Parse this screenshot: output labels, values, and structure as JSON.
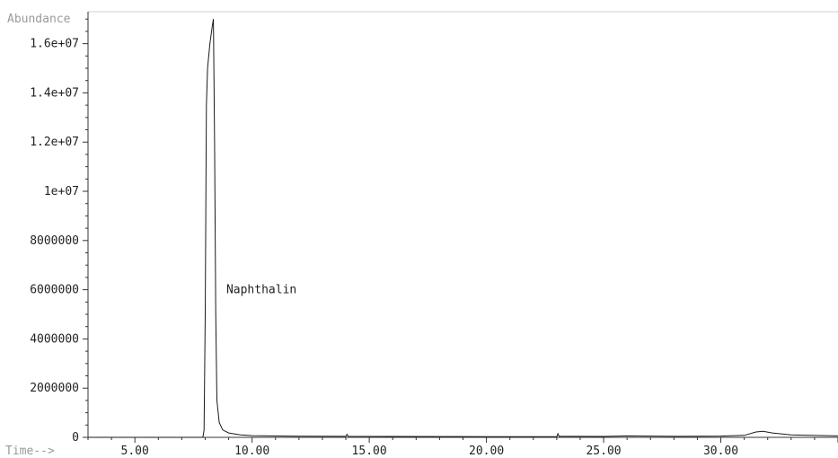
{
  "chart_data": {
    "type": "line",
    "ylabel": "Abundance",
    "xlabel": "Time-->",
    "xlim": [
      3.0,
      35.0
    ],
    "ylim": [
      0,
      17300000
    ],
    "x_ticks": [
      5.0,
      10.0,
      15.0,
      20.0,
      25.0,
      30.0
    ],
    "x_tick_labels": [
      "5.00",
      "10.00",
      "15.00",
      "20.00",
      "25.00",
      "30.00"
    ],
    "y_ticks": [
      0,
      2000000,
      4000000,
      6000000,
      8000000,
      10000000,
      12000000,
      14000000,
      16000000
    ],
    "y_tick_labels": [
      "0",
      "2000000",
      "4000000",
      "6000000",
      "8000000",
      "1e+07",
      "1.2e+07",
      "1.4e+07",
      "1.6e+07"
    ],
    "grid": false,
    "series": [
      {
        "x": [
          3.0,
          7.9,
          7.95,
          8.0,
          8.05,
          8.1,
          8.2,
          8.3,
          8.35,
          8.4,
          8.45,
          8.5,
          8.6,
          8.75,
          9.0,
          9.5,
          10.0,
          12.0,
          14.0,
          14.05,
          14.1,
          16.0,
          18.0,
          20.0,
          22.0,
          23.0,
          23.05,
          23.1,
          25.0,
          26.0,
          28.0,
          30.0,
          31.0,
          31.5,
          31.8,
          32.2,
          33.0,
          35.0
        ],
        "y": [
          0,
          0,
          300000,
          5000000,
          13500000,
          15000000,
          16000000,
          16700000,
          17000000,
          12000000,
          5000000,
          1500000,
          600000,
          300000,
          180000,
          100000,
          70000,
          45000,
          40000,
          120000,
          40000,
          35000,
          32000,
          30000,
          30000,
          30000,
          150000,
          40000,
          35000,
          60000,
          40000,
          50000,
          80000,
          220000,
          250000,
          180000,
          100000,
          60000
        ]
      }
    ],
    "annotations": [
      {
        "text": "Naphthalin",
        "x": 8.9,
        "y": 6000000
      }
    ]
  }
}
